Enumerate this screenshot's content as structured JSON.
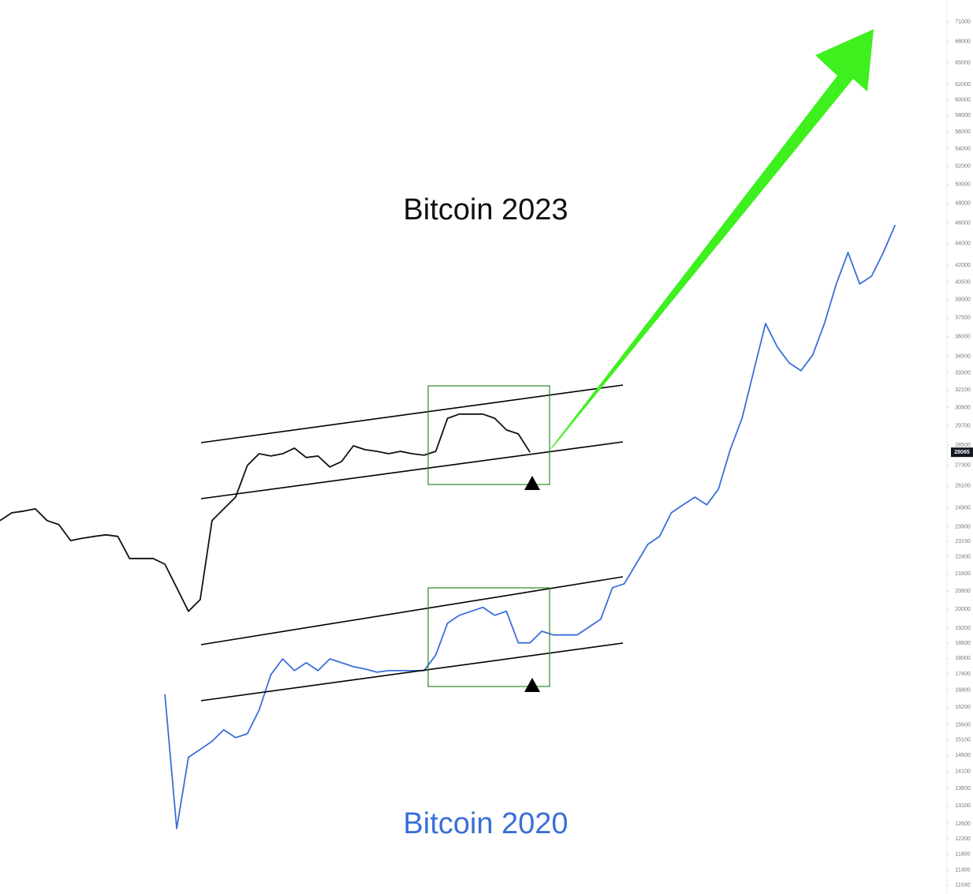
{
  "chart_data": {
    "type": "line",
    "yscale": "log",
    "x": [
      0,
      1,
      2,
      3,
      4,
      5,
      6,
      7,
      8,
      9,
      10,
      11,
      12,
      13,
      14,
      15,
      16,
      17,
      18,
      19,
      20,
      21,
      22,
      23,
      24,
      25,
      26,
      27,
      28,
      29,
      30,
      31,
      32,
      33,
      34,
      35,
      36,
      37,
      38,
      39,
      40,
      41,
      42,
      43,
      44,
      45,
      46,
      47,
      48,
      49,
      50,
      51,
      52,
      53,
      54,
      55,
      56,
      57,
      58,
      59,
      60,
      61,
      62,
      63,
      64,
      65,
      66,
      67,
      68,
      69,
      70,
      71,
      72,
      73,
      74,
      75,
      76
    ],
    "xlim": [
      0,
      80
    ],
    "ylim": [
      10830,
      74400
    ],
    "yticks": [
      71000,
      68000,
      65000,
      62000,
      60000,
      58000,
      56000,
      54000,
      52000,
      50000,
      48000,
      46000,
      44000,
      42000,
      40500,
      39000,
      37500,
      36000,
      34500,
      33300,
      32100,
      30900,
      29700,
      28500,
      27300,
      26100,
      24900,
      23900,
      23150,
      22400,
      21600,
      20800,
      20000,
      19200,
      18600,
      18000,
      17400,
      16800,
      16200,
      15600,
      15100,
      14600,
      14100,
      13600,
      13100,
      12600,
      12200,
      11800,
      11400,
      11040
    ],
    "series": [
      {
        "name": "Bitcoin 2023",
        "color": "#111111",
        "values": [
          24220,
          24630,
          24720,
          24840,
          24220,
          24010,
          23200,
          23320,
          23410,
          23490,
          23410,
          22320,
          22320,
          22320,
          22050,
          20960,
          19920,
          20430,
          24220,
          24840,
          25480,
          27280,
          27980,
          27840,
          27980,
          28320,
          27750,
          27840,
          27190,
          27510,
          28460,
          28220,
          28120,
          27980,
          28120,
          27980,
          27890,
          28120,
          30200,
          30470,
          30470,
          30470,
          30200,
          29450,
          29200,
          28065,
          null,
          null,
          null,
          null,
          null,
          null,
          null,
          null,
          null,
          null,
          null,
          null,
          null,
          null,
          null,
          null,
          null,
          null,
          null,
          null,
          null,
          null,
          null,
          null,
          null,
          null,
          null,
          null,
          null,
          null,
          null
        ]
      },
      {
        "name": "Bitcoin 2020",
        "color": "#3a6fd8",
        "values": [
          null,
          null,
          null,
          null,
          null,
          null,
          null,
          null,
          null,
          null,
          null,
          null,
          null,
          null,
          16660,
          12470,
          14540,
          14790,
          15050,
          15430,
          15170,
          15300,
          16100,
          17380,
          17980,
          17530,
          17830,
          17530,
          17980,
          17830,
          17680,
          17590,
          17470,
          17530,
          17530,
          17530,
          17530,
          18130,
          19420,
          19750,
          19920,
          20090,
          19750,
          19920,
          18610,
          18610,
          19080,
          18930,
          18930,
          18930,
          19250,
          19580,
          20960,
          21140,
          22050,
          23010,
          23410,
          24630,
          25060,
          25480,
          25060,
          25920,
          28220,
          30200,
          33460,
          37040,
          35210,
          34030,
          33460,
          34610,
          37040,
          40340,
          43170,
          40340,
          41030,
          43170,
          45820
        ]
      }
    ]
  }
}
